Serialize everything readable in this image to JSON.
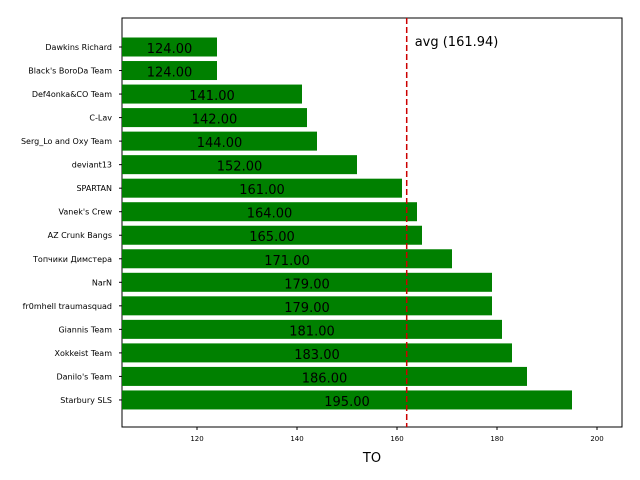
{
  "chart_data": {
    "type": "bar",
    "orientation": "horizontal",
    "xlabel": "TO",
    "xlim": [
      105,
      205
    ],
    "xticks": [
      120,
      140,
      160,
      180,
      200
    ],
    "bar_color": "#008000",
    "categories": [
      "Dawkins Richard",
      "Black's BoroDa Team",
      "Def4onka&CO Team",
      "C-Lav",
      "Serg_Lo and Oxy Team",
      "deviant13",
      "SPARTAN",
      "Vanek's Crew",
      "AZ Crunk Bangs",
      "Топчики Димстера",
      "NarN",
      "fr0mhell traumasquad",
      "Giannis Team",
      "Xokkeist Team",
      "Danilo's Team",
      "Starbury SLS"
    ],
    "values": [
      124,
      124,
      141,
      142,
      144,
      152,
      161,
      164,
      165,
      171,
      179,
      179,
      181,
      183,
      186,
      195
    ],
    "value_labels": [
      "124.00",
      "124.00",
      "141.00",
      "142.00",
      "144.00",
      "152.00",
      "161.00",
      "164.00",
      "165.00",
      "171.00",
      "179.00",
      "179.00",
      "181.00",
      "183.00",
      "186.00",
      "195.00"
    ],
    "reference_line": {
      "value": 161.94,
      "label": "avg (161.94)",
      "color": "#cc0000",
      "style": "dashed"
    },
    "grid": false
  }
}
